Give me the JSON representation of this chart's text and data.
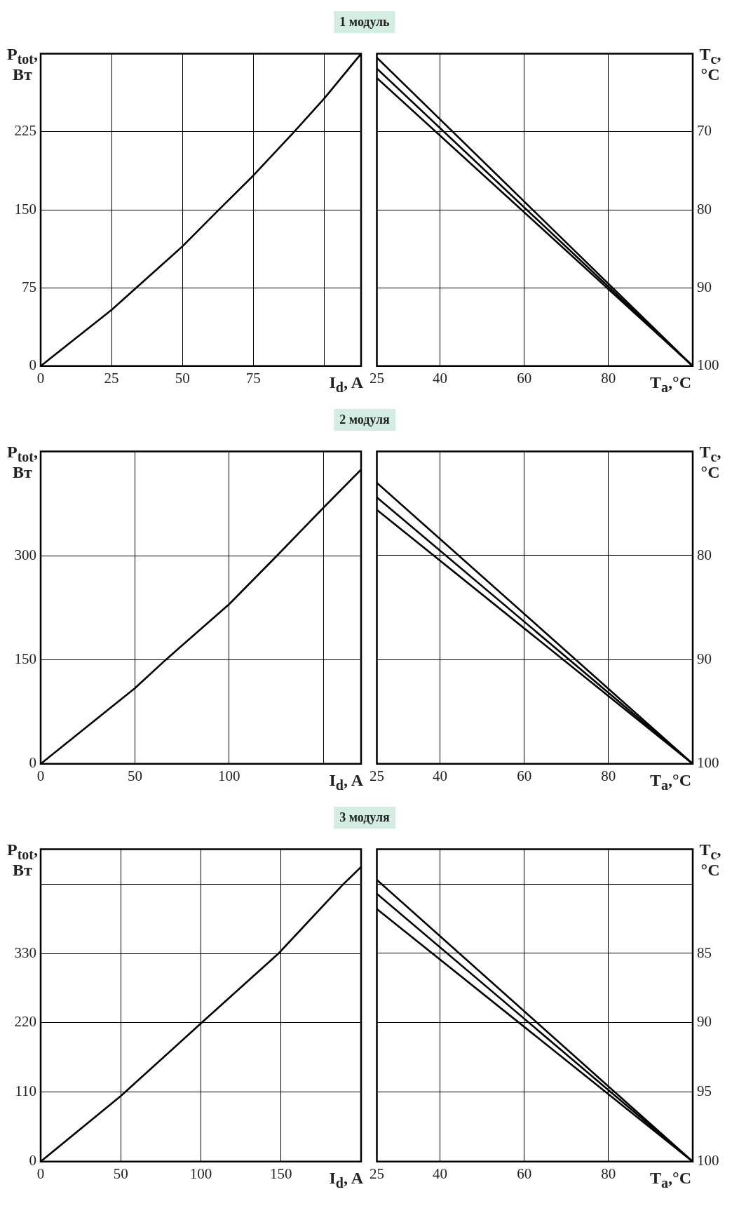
{
  "chart_data": [
    {
      "type": "line",
      "title": "1 модуль",
      "xlabel": "I$_{d}$, A",
      "ylabel": "P$_{tot}$, Вт",
      "xlim": [
        0,
        113
      ],
      "xticks": [
        0,
        25,
        50,
        75,
        {
          "value": 100,
          "label": null
        }
      ],
      "ylim": [
        0,
        300
      ],
      "yticks": [
        0,
        75,
        150,
        225
      ],
      "grid": true,
      "series": [
        {
          "color": "#000000",
          "x": [
            0,
            25,
            50,
            62.8,
            75,
            89.4,
            100,
            113
          ],
          "values": [
            0,
            54,
            115,
            150,
            183,
            225,
            257,
            300
          ]
        }
      ]
    },
    {
      "type": "line",
      "xlabel": "T$_{a}$,°C",
      "ylabel": "T$_{c}$, °C",
      "xlim": [
        25,
        100
      ],
      "xticks": [
        25,
        40,
        60,
        80
      ],
      "ylim": [
        100,
        60
      ],
      "yticks": [
        70,
        80,
        90,
        100
      ],
      "grid": true,
      "series": [
        {
          "color": "#000000",
          "x": [
            25,
            100
          ],
          "values": [
            60.5,
            100
          ]
        },
        {
          "color": "#000000",
          "x": [
            25,
            100
          ],
          "values": [
            61.9,
            100
          ]
        },
        {
          "color": "#000000",
          "x": [
            25,
            100
          ],
          "values": [
            63.1,
            100
          ]
        }
      ]
    },
    {
      "type": "line",
      "title": "2 модуля",
      "xlabel": "I$_{d}$, A",
      "ylabel": "P$_{tot}$, Вт",
      "xlim": [
        0,
        170
      ],
      "xticks": [
        0,
        50,
        100,
        {
          "value": 150,
          "label": null
        }
      ],
      "ylim": [
        0,
        450
      ],
      "yticks": [
        0,
        150,
        300
      ],
      "grid": true,
      "series": [
        {
          "color": "#000000",
          "x": [
            0,
            50,
            66.4,
            100,
            125.4,
            150,
            170
          ],
          "values": [
            0,
            109,
            150,
            230,
            300,
            369,
            424
          ]
        }
      ]
    },
    {
      "type": "line",
      "xlabel": "T$_{a}$,°C",
      "ylabel": "T$_{c}$, °C",
      "xlim": [
        25,
        100
      ],
      "xticks": [
        25,
        40,
        60,
        80
      ],
      "ylim": [
        100,
        70
      ],
      "yticks": [
        80,
        90,
        100
      ],
      "grid": true,
      "series": [
        {
          "color": "#000000",
          "x": [
            25,
            100
          ],
          "values": [
            73.0,
            100
          ]
        },
        {
          "color": "#000000",
          "x": [
            25,
            100
          ],
          "values": [
            74.4,
            100
          ]
        },
        {
          "color": "#000000",
          "x": [
            25,
            100
          ],
          "values": [
            75.6,
            100
          ]
        }
      ]
    },
    {
      "type": "line",
      "title": "3 модуля",
      "xlabel": "I$_{d}$, A",
      "ylabel": "P$_{tot}$, Вт",
      "xlim": [
        0,
        200
      ],
      "xticks": [
        0,
        50,
        100,
        150
      ],
      "ylim": [
        0,
        495
      ],
      "yticks": [
        0,
        110,
        220,
        330,
        {
          "value": 440,
          "label": null
        }
      ],
      "grid": true,
      "series": [
        {
          "color": "#000000",
          "x": [
            0,
            50,
            100,
            148.5,
            189,
            200
          ],
          "values": [
            0,
            104,
            219,
            330,
            440,
            467
          ]
        }
      ]
    },
    {
      "type": "line",
      "xlabel": "T$_{a}$,°C",
      "ylabel": "T$_{c}$, °C",
      "xlim": [
        25,
        100
      ],
      "xticks": [
        25,
        40,
        60,
        80
      ],
      "ylim": [
        100,
        77.5
      ],
      "yticks": [
        {
          "value": 80,
          "label": null
        },
        85,
        90,
        95,
        100
      ],
      "grid": true,
      "series": [
        {
          "color": "#000000",
          "x": [
            25,
            100
          ],
          "values": [
            79.7,
            100
          ]
        },
        {
          "color": "#000000",
          "x": [
            25,
            100
          ],
          "values": [
            80.7,
            100
          ]
        },
        {
          "color": "#000000",
          "x": [
            25,
            100
          ],
          "values": [
            81.8,
            100
          ]
        }
      ]
    }
  ]
}
